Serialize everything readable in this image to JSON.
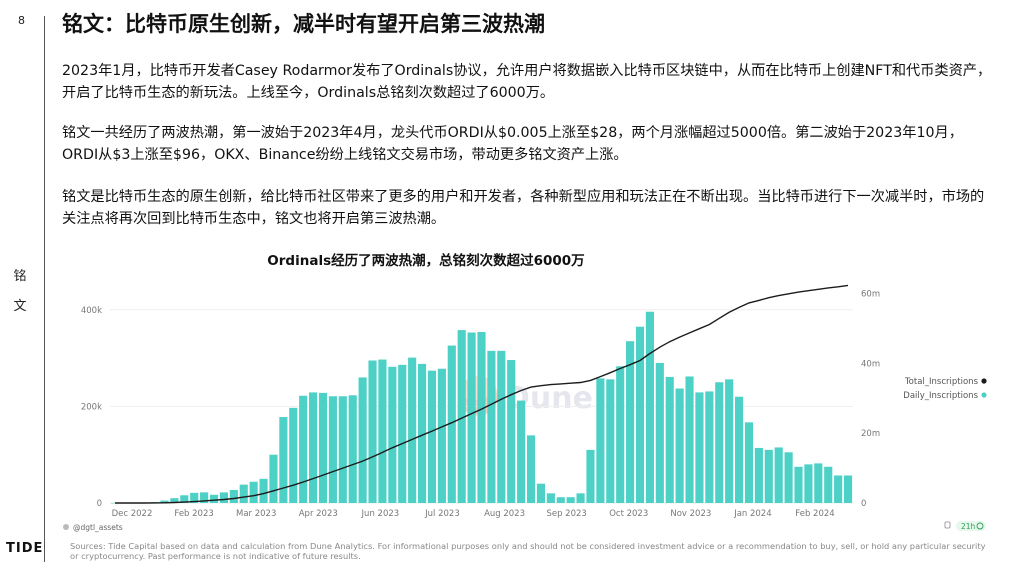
{
  "page": {
    "number": "8",
    "side_label": "铭文",
    "brand": "TIDE",
    "title": "铭文：比特币原生创新，减半时有望开启第三波热潮",
    "paragraphs": [
      "2023年1月，比特币开发者Casey Rodarmor发布了Ordinals协议，允许用户将数据嵌入比特币区块链中，从而在比特币上创建NFT和代币类资产，开启了比特币生态的新玩法。上线至今，Ordinals总铭刻次数超过了6000万。",
      "铭文一共经历了两波热潮，第一波始于2023年4月，龙头代币ORDI从$0.005上涨至$28，两个月涨幅超过5000倍。第二波始于2023年10月，ORDI从$3上涨至$96，OKX、Binance纷纷上线铭文交易市场，带动更多铭文资产上涨。",
      "铭文是比特币生态的原生创新，给比特币社区带来了更多的用户和开发者，各种新型应用和玩法正在不断出现。当比特币进行下一次减半时，市场的关注点将再次回到比特币生态中，铭文也将开启第三波热潮。"
    ],
    "sources": "Sources: Tide Capital based on data and calculation from Dune Analytics. For informational purposes only and should not be considered investment advice or a recommendation to buy, sell, or hold any particular security or cryptocurrency. Past performance is not indicative of future results."
  },
  "chart_data": {
    "type": "bar+line",
    "title": "Ordinals经历了两波热潮，总铭刻次数超过6000万",
    "watermark": "Dune",
    "author": "@dgtl_assets",
    "refresh": "21h",
    "x_labels": [
      "Dec 2022",
      "Feb 2023",
      "Mar 2023",
      "Apr 2023",
      "Jun 2023",
      "Jul 2023",
      "Aug 2023",
      "Sep 2023",
      "Oct 2023",
      "Nov 2023",
      "Jan 2024",
      "Feb 2024"
    ],
    "left_axis": {
      "ticks": [
        0,
        200000,
        400000
      ],
      "tick_labels": [
        "0",
        "200k",
        "400k"
      ],
      "ylim": [
        0,
        470000
      ]
    },
    "right_axis": {
      "ticks": [
        0,
        20000000,
        40000000,
        60000000
      ],
      "tick_labels": [
        "0",
        "20m",
        "40m",
        "60m"
      ],
      "ylim": [
        0,
        65000000
      ]
    },
    "colors": {
      "daily": "#4dd0c6",
      "total": "#1c1c1c",
      "axis_text": "#777777"
    },
    "legend_position": "right",
    "series": [
      {
        "name": "Total_Inscriptions",
        "axis": "right",
        "kind": "line",
        "values": [
          0,
          0,
          0,
          10000,
          30000,
          70000,
          150000,
          250000,
          400000,
          600000,
          800000,
          1000000,
          1300000,
          1700000,
          2100000,
          2700000,
          3500000,
          4300000,
          5100000,
          6000000,
          7000000,
          8000000,
          9000000,
          10000000,
          11000000,
          12000000,
          13200000,
          14500000,
          15800000,
          17000000,
          18200000,
          19400000,
          20600000,
          21800000,
          23000000,
          24300000,
          25600000,
          26900000,
          28300000,
          29700000,
          31000000,
          32200000,
          33200000,
          33600000,
          33900000,
          34100000,
          34300000,
          34500000,
          35100000,
          36200000,
          37300000,
          38500000,
          39600000,
          40800000,
          42800000,
          44600000,
          46200000,
          47500000,
          48700000,
          49900000,
          51100000,
          52900000,
          54600000,
          56000000,
          57300000,
          58000000,
          58800000,
          59400000,
          59900000,
          60400000,
          60800000,
          61200000,
          61600000,
          61900000,
          62300000
        ]
      },
      {
        "name": "Daily_Inscriptions",
        "axis": "left",
        "kind": "bar",
        "values": [
          100,
          300,
          500,
          1000,
          2000,
          5000,
          10000,
          16000,
          21000,
          22000,
          17000,
          22000,
          27000,
          38000,
          44000,
          50000,
          100000,
          178000,
          197000,
          222000,
          229000,
          228000,
          221000,
          221000,
          223000,
          260000,
          295000,
          297000,
          282000,
          286000,
          301000,
          288000,
          274000,
          278000,
          326000,
          358000,
          353000,
          354000,
          315000,
          315000,
          296000,
          212000,
          140000,
          40000,
          20000,
          12000,
          12000,
          20000,
          110000,
          258000,
          256000,
          283000,
          335000,
          365000,
          396000,
          290000,
          261000,
          237000,
          262000,
          229000,
          231000,
          250000,
          256000,
          220000,
          167000,
          114000,
          110000,
          115000,
          105000,
          75000,
          80000,
          82000,
          75000,
          57000,
          57000
        ]
      }
    ]
  }
}
